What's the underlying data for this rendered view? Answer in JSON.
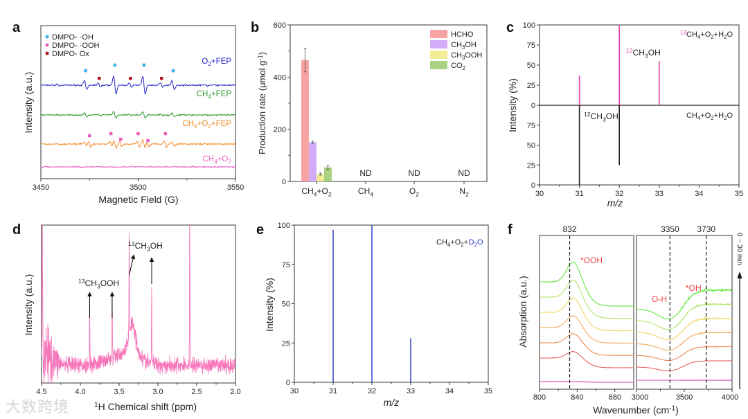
{
  "figure": {
    "watermark": "大数跨境",
    "panels": [
      "a",
      "b",
      "c",
      "d",
      "e",
      "f"
    ]
  },
  "chart_data": [
    {
      "id": "a",
      "type": "line",
      "title": "",
      "xlabel": "Magnetic Field (G)",
      "ylabel": "Intensity (a.u.)",
      "xlim": [
        3450,
        3550
      ],
      "xticks": [
        3450,
        3500,
        3550
      ],
      "legend": {
        "placement": "top-left",
        "entries": [
          {
            "label": "DMPO- ·OH",
            "marker": "circle",
            "color": "#48b4ee"
          },
          {
            "label": "DMPO- ·OOH",
            "marker": "square",
            "color": "#e45ab8"
          },
          {
            "label": "DMPO- Ox",
            "marker": "square",
            "color": "#b01414"
          }
        ]
      },
      "series": [
        {
          "name": "O2+FEP",
          "color": "#2626cc",
          "oh_peaks": [
            3473,
            3488,
            3503,
            3518
          ],
          "ox_peaks": [
            3480,
            3496,
            3512
          ],
          "scale": 1.0
        },
        {
          "name": "CH4+FEP",
          "color": "#2a962a",
          "oh_peaks": [
            3473,
            3488,
            3503,
            3518
          ],
          "ox_peaks": [
            3480,
            3496,
            3512
          ],
          "scale": 0.35
        },
        {
          "name": "CH4+O2+FEP",
          "color": "#f08a28",
          "oh_peaks": [
            3473,
            3488,
            3503,
            3518
          ],
          "ooh_peaks": [
            3475,
            3486,
            3491,
            3500,
            3505,
            3514
          ],
          "scale": 0.45
        },
        {
          "name": "CH4+O2",
          "color": "#ea5fc2",
          "scale": 0
        }
      ]
    },
    {
      "id": "b",
      "type": "bar",
      "xlabel": "",
      "ylabel": "Production rate (μmol g-1)",
      "ylim": [
        0,
        600
      ],
      "yticks": [
        0,
        200,
        400,
        600
      ],
      "categories": [
        "CH4+O2",
        "CH4",
        "O2",
        "N2"
      ],
      "legend": {
        "placement": "top-right"
      },
      "series": [
        {
          "name": "HCHO",
          "color": "#f7a3a3",
          "values": [
            465,
            null,
            null,
            null
          ],
          "errors": [
            45,
            null,
            null,
            null
          ]
        },
        {
          "name": "CH3OH",
          "color": "#d3acf7",
          "values": [
            150,
            null,
            null,
            null
          ],
          "errors": [
            4,
            null,
            null,
            null
          ]
        },
        {
          "name": "CH3OOH",
          "color": "#f1ec95",
          "values": [
            28,
            null,
            null,
            null
          ],
          "errors": [
            4,
            null,
            null,
            null
          ]
        },
        {
          "name": "CO2",
          "color": "#a9d283",
          "values": [
            54,
            null,
            null,
            null
          ],
          "errors": [
            7,
            null,
            null,
            null
          ]
        }
      ],
      "not_detected_label": "ND",
      "not_detected": [
        "CH4",
        "O2",
        "N2"
      ]
    },
    {
      "id": "c",
      "type": "bar",
      "xlabel": "m/z",
      "ylabel": "Intensity (%)",
      "xlim": [
        30,
        35
      ],
      "xticks": [
        30,
        31,
        32,
        33,
        34,
        35
      ],
      "yticks_upper": [
        0,
        25,
        50,
        75,
        100
      ],
      "yticks_lower": [
        75,
        50,
        25,
        0
      ],
      "series": [
        {
          "name": "13CH4+O2+H2O",
          "color": "#e040a8",
          "x": [
            31,
            32,
            33
          ],
          "values": [
            37,
            100,
            55
          ],
          "direction": "up"
        },
        {
          "name": "CH4+O2+H2O",
          "color": "#222222",
          "x": [
            31,
            32
          ],
          "values": [
            100,
            75
          ],
          "direction": "down"
        }
      ],
      "annotations": [
        "13CH3OH",
        "12CH3OH"
      ]
    },
    {
      "id": "d",
      "type": "line",
      "xlabel": "1H Chemical shift (ppm)",
      "ylabel": "Intensity (a.u.)",
      "xlim": [
        4.5,
        2.0
      ],
      "xticks": [
        4.5,
        4.0,
        3.5,
        3.0,
        2.5,
        2.0
      ],
      "color": "#f777bb",
      "peaks": [
        {
          "ppm": 4.49,
          "intensity": 1.0
        },
        {
          "ppm": 3.88,
          "intensity": 0.35
        },
        {
          "ppm": 3.59,
          "intensity": 0.35
        },
        {
          "ppm": 3.37,
          "intensity": 0.66
        },
        {
          "ppm": 3.08,
          "intensity": 0.5
        },
        {
          "ppm": 2.59,
          "intensity": 1.0
        }
      ],
      "broad_peak": {
        "ppm": 3.33,
        "intensity": 0.3
      },
      "annotations": [
        {
          "label": "13CH3OOH",
          "ppm": [
            3.88,
            3.59
          ]
        },
        {
          "label": "13CH3OH",
          "ppm": [
            3.37,
            3.08
          ]
        }
      ]
    },
    {
      "id": "e",
      "type": "bar",
      "xlabel": "m/z",
      "ylabel": "Intensity (%)",
      "xlim": [
        30,
        35
      ],
      "ylim": [
        0,
        100
      ],
      "xticks": [
        30,
        31,
        32,
        33,
        34,
        35
      ],
      "yticks": [
        0,
        25,
        50,
        75,
        100
      ],
      "series": [
        {
          "name": "CH4+O2+D2O",
          "color": "#3a4ccc",
          "x": [
            31,
            32,
            33
          ],
          "values": [
            97,
            100,
            28
          ]
        }
      ],
      "annotation": {
        "prefix": "CH4+O2+",
        "highlight": "D2O",
        "highlight_color": "#2a3ccf"
      }
    },
    {
      "id": "f",
      "type": "line",
      "xlabel": "Wavenumber (cm-1)",
      "ylabel": "Absorption (a.u.)",
      "xlim_left": [
        800,
        900
      ],
      "xlim_right": [
        3000,
        4000
      ],
      "xticks_left": [
        800,
        840,
        880
      ],
      "xticks_right": [
        3000,
        3500,
        4000
      ],
      "reference_lines": [
        832,
        3350,
        3730
      ],
      "annotations": [
        {
          "label": "*OOH",
          "color": "#f04040"
        },
        {
          "label": "O-H",
          "color": "#f04040"
        },
        {
          "label": "*OH",
          "color": "#f04040"
        }
      ],
      "time_label": "0 ~ 30 min",
      "series_colors": [
        "#d642b4",
        "#ea5f5f",
        "#f08a5a",
        "#f0ac5a",
        "#eed45a",
        "#b4e46a",
        "#5ee83c"
      ]
    }
  ]
}
